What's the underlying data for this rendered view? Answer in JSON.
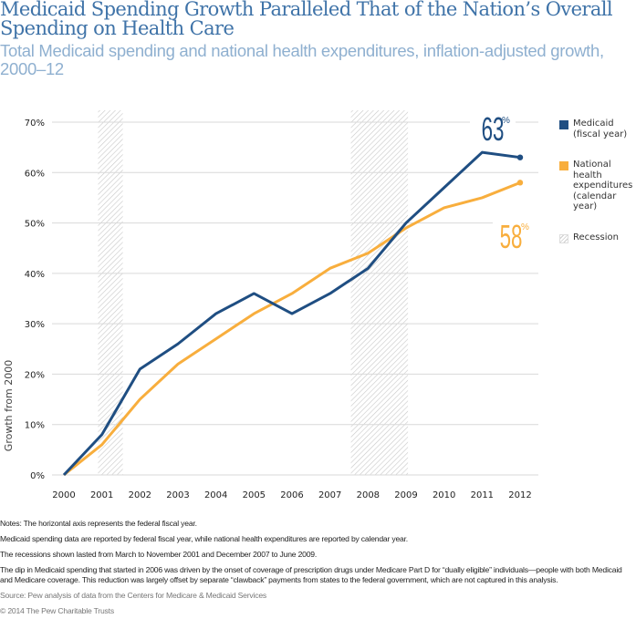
{
  "title": "Medicaid Spending Growth Paralleled That of the Nation’s Overall Spending on Health Care",
  "subtitle": "Total Medicaid spending and national health expenditures, inflation-adjusted growth, 2000–12",
  "colors": {
    "medicaid": "#1f4e82",
    "nhe": "#f8ae3d",
    "grid": "#d9d9d9",
    "recession": "#c8c8c8",
    "title": "#3f73a8",
    "subtitle": "#8fb0d0"
  },
  "chart_data": {
    "type": "line",
    "title": "Medicaid Spending Growth Paralleled That of the Nation’s Overall Spending on Health Care",
    "subtitle": "Total Medicaid spending and national health expenditures, inflation-adjusted growth, 2000–12",
    "xlabel": "",
    "ylabel": "Growth from 2000",
    "x": [
      2000,
      2001,
      2002,
      2003,
      2004,
      2005,
      2006,
      2007,
      2008,
      2009,
      2010,
      2011,
      2012
    ],
    "x_tick_labels": [
      "2000",
      "2001",
      "2002",
      "2003",
      "2004",
      "2005",
      "2006",
      "2007",
      "2008",
      "2009",
      "2010",
      "2011",
      "2012"
    ],
    "y_ticks": [
      0,
      10,
      20,
      30,
      40,
      50,
      60,
      70
    ],
    "y_tick_labels": [
      "0%",
      "10%",
      "20%",
      "30%",
      "40%",
      "50%",
      "60%",
      "70%"
    ],
    "ylim": [
      0,
      70
    ],
    "grid": true,
    "legend_position": "right",
    "series": [
      {
        "key": "medicaid",
        "name": "Medicaid (fiscal year)",
        "values": [
          0,
          8,
          21,
          26,
          32,
          36,
          32,
          36,
          41,
          50,
          57,
          64,
          63
        ],
        "end_label": "63",
        "end_label_suffix": "%"
      },
      {
        "key": "nhe",
        "name": "National health expenditures (calendar year)",
        "values": [
          0,
          6,
          15,
          22,
          27,
          32,
          36,
          41,
          44,
          49,
          53,
          55,
          58
        ],
        "end_label": "58",
        "end_label_suffix": "%"
      }
    ],
    "recessions": [
      {
        "label": "Recession",
        "start": 2000.9,
        "end": 2001.55
      },
      {
        "label": "Recession",
        "start": 2007.55,
        "end": 2009.05
      }
    ]
  },
  "legend": {
    "items": [
      {
        "key": "medicaid",
        "label": "Medicaid (fiscal year)"
      },
      {
        "key": "nhe",
        "label": "National health expenditures (calendar year)"
      },
      {
        "key": "recession",
        "label": "Recession"
      }
    ]
  },
  "notes": {
    "lines": [
      "Notes: The horizontal axis represents the federal fiscal year.",
      "Medicaid spending data are reported by federal fiscal year, while national health expenditures are reported by calendar year.",
      "The recessions shown lasted from March to November 2001 and December 2007 to June 2009.",
      "The dip in Medicaid spending that started in 2006 was driven by the onset of coverage of prescription drugs under Medicare Part D for “dually eligible” individuals—people with both Medicaid and Medicare coverage. This reduction was largely offset by separate “clawback” payments from states to the federal government, which are not captured in this analysis."
    ],
    "source": "Source: Pew analysis of data from the Centers for Medicare & Medicaid Services",
    "copyright": "© 2014 The Pew Charitable Trusts"
  }
}
